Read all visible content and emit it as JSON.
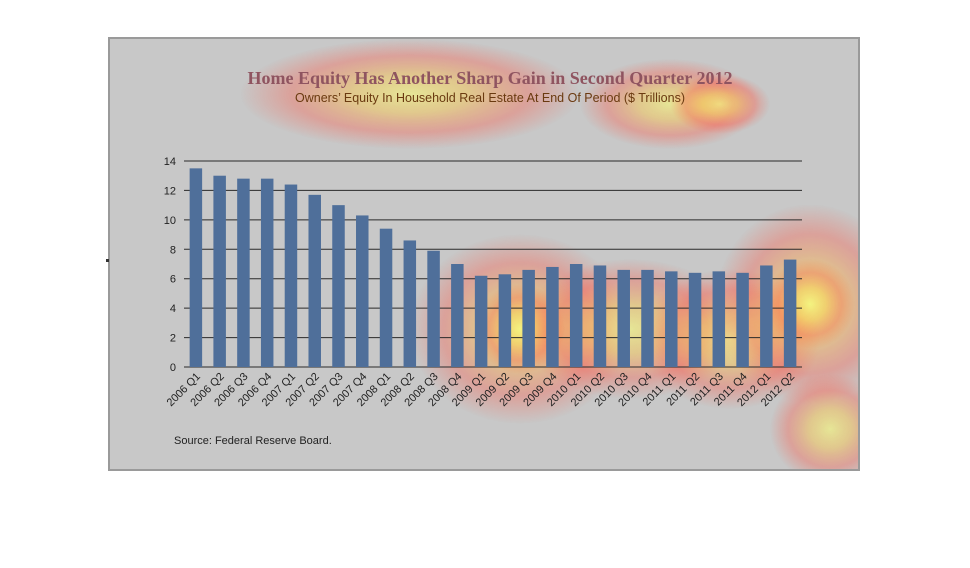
{
  "chart_data": {
    "type": "bar",
    "title": "Home Equity Has Another Sharp Gain in Second Quarter 2012",
    "subtitle": "Owners’ Equity In Household Real Estate At End Of Period ($ Trillions)",
    "source": "Source:  Federal Reserve Board.",
    "categories": [
      "2006 Q1",
      "2006 Q2",
      "2006 Q3",
      "2006 Q4",
      "2007 Q1",
      "2007 Q2",
      "2007 Q3",
      "2007 Q4",
      "2008 Q1",
      "2008 Q2",
      "2008 Q3",
      "2008 Q4",
      "2009 Q1",
      "2009 Q2",
      "2009 Q3",
      "2009 Q4",
      "2010 Q1",
      "2010 Q2",
      "2010 Q3",
      "2010 Q4",
      "2011 Q1",
      "2011 Q2",
      "2011 Q3",
      "2011 Q4",
      "2012 Q1",
      "2012 Q2"
    ],
    "values": [
      13.5,
      13.0,
      12.8,
      12.8,
      12.4,
      11.7,
      11.0,
      10.3,
      9.4,
      8.6,
      7.9,
      7.0,
      6.2,
      6.3,
      6.6,
      6.8,
      7.0,
      6.9,
      6.6,
      6.6,
      6.5,
      6.4,
      6.5,
      6.4,
      6.9,
      7.3
    ],
    "ylim": [
      0,
      14
    ],
    "yticks": [
      0,
      2,
      4,
      6,
      8,
      10,
      12,
      14
    ],
    "grid": true,
    "bar_color": "#4f6f9a",
    "gridline_color": "#2a2a2a",
    "background_color": "#c8c8c8"
  },
  "heatmap_overlay": {
    "present": true,
    "colors": [
      "#ffff66",
      "#ffd24a",
      "#ff6a4a"
    ]
  }
}
